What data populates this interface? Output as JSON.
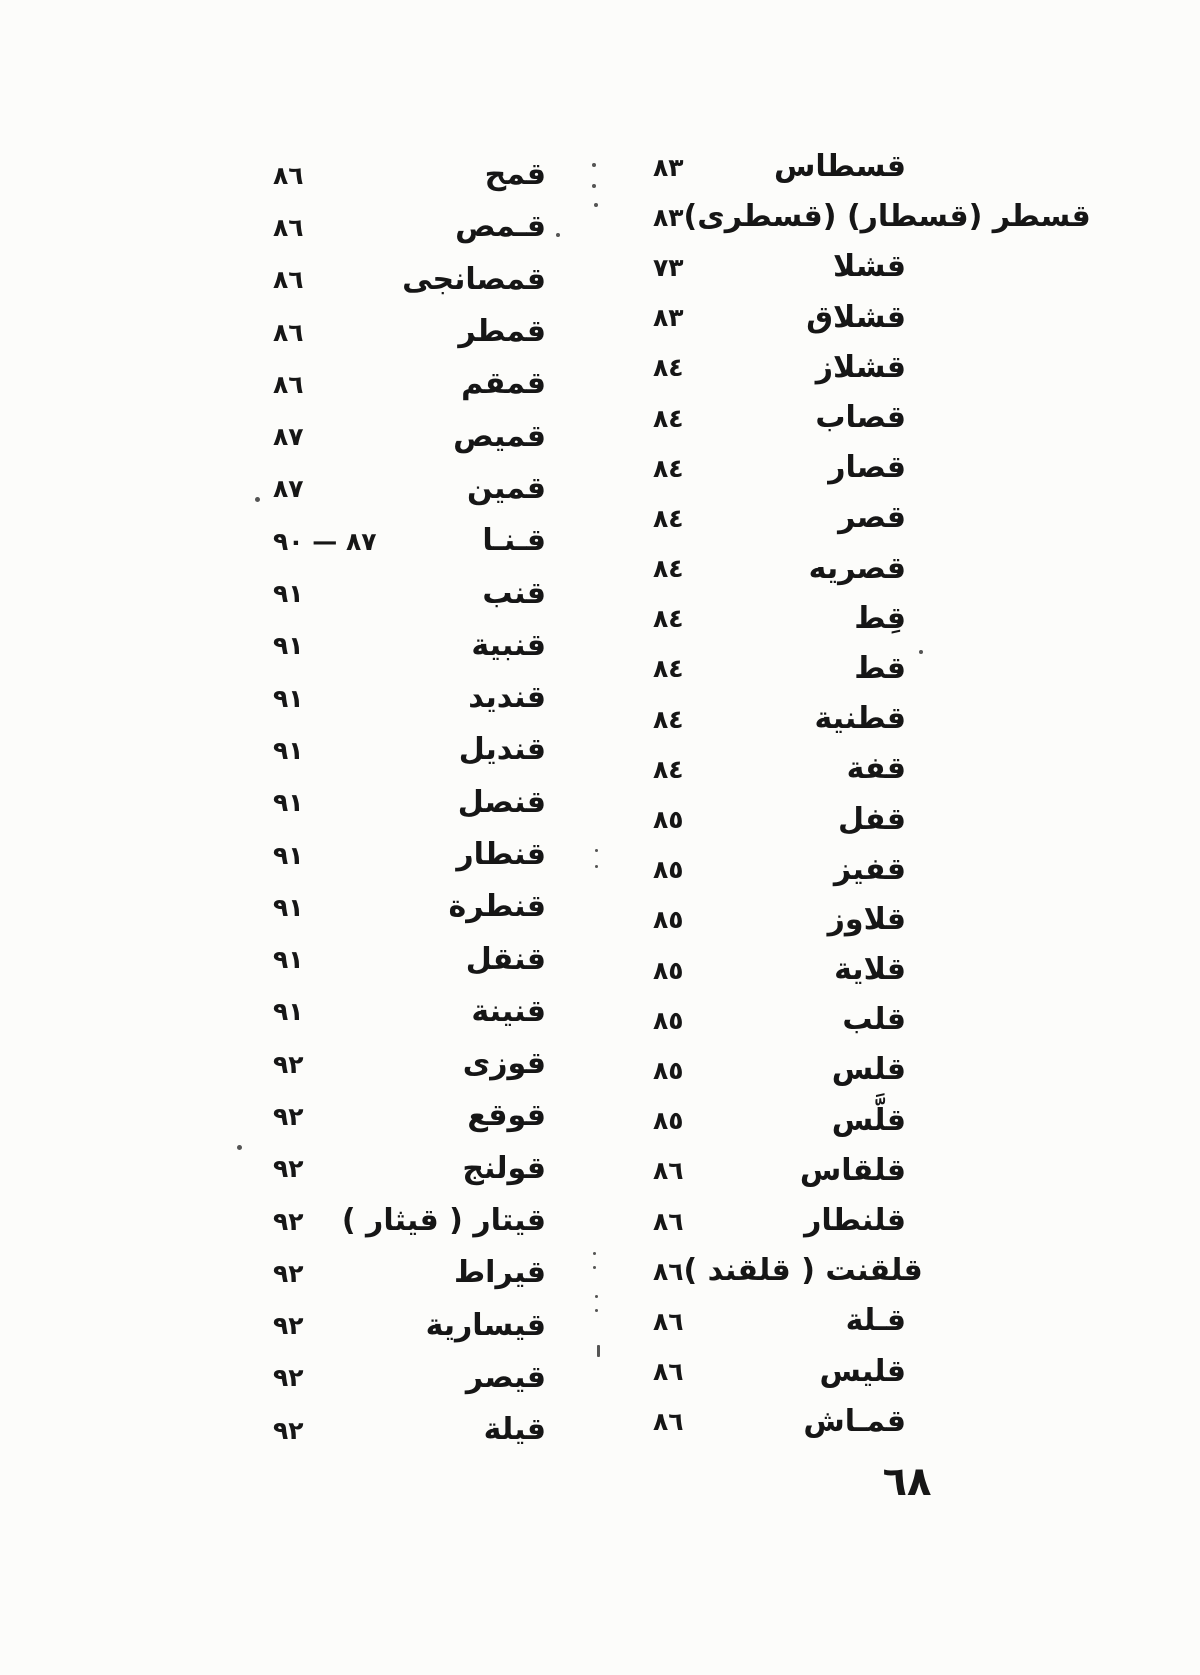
{
  "document": {
    "type": "scanned-book-index-page",
    "language": "Arabic",
    "page_number": "٦٨",
    "ink_color": "#161616",
    "background_color": "#fcfcfa",
    "columns": {
      "first_right": [
        {
          "term": "قسطاس",
          "page": "٨٣"
        },
        {
          "term": "قسطر (قسطار) (قسطرى)",
          "page": "٨٣"
        },
        {
          "term": "قشلا",
          "page": "٧٣"
        },
        {
          "term": "قشلاق",
          "page": "٨٣"
        },
        {
          "term": "قشلاز",
          "page": "٨٤"
        },
        {
          "term": "قصاب",
          "page": "٨٤"
        },
        {
          "term": "قصار",
          "page": "٨٤"
        },
        {
          "term": "قصر",
          "page": "٨٤"
        },
        {
          "term": "قصريه",
          "page": "٨٤"
        },
        {
          "term": "قِط",
          "page": "٨٤"
        },
        {
          "term": "قط",
          "page": "٨٤"
        },
        {
          "term": "قطنية",
          "page": "٨٤"
        },
        {
          "term": "قفة",
          "page": "٨٤"
        },
        {
          "term": "قفل",
          "page": "٨٥"
        },
        {
          "term": "قفيز",
          "page": "٨٥"
        },
        {
          "term": "قلاوز",
          "page": "٨٥"
        },
        {
          "term": "قلاية",
          "page": "٨٥"
        },
        {
          "term": "قلب",
          "page": "٨٥"
        },
        {
          "term": "قلس",
          "page": "٨٥"
        },
        {
          "term": "قلَّس",
          "page": "٨٥"
        },
        {
          "term": "قلقاس",
          "page": "٨٦"
        },
        {
          "term": "قلنطار",
          "page": "٨٦"
        },
        {
          "term": "قلقنت ( قلقند )",
          "page": "٨٦"
        },
        {
          "term": "قـلة",
          "page": "٨٦"
        },
        {
          "term": "قليس",
          "page": "٨٦"
        },
        {
          "term": "قمـاش",
          "page": "٨٦"
        }
      ],
      "second_left": [
        {
          "term": "قمح",
          "page": "٨٦"
        },
        {
          "term": "قـمص",
          "page": "٨٦"
        },
        {
          "term": "قمصانجى",
          "page": "٨٦"
        },
        {
          "term": "قمطر",
          "page": "٨٦"
        },
        {
          "term": "قمقم",
          "page": "٨٦"
        },
        {
          "term": "قميص",
          "page": "٨٧"
        },
        {
          "term": "قمين",
          "page": "٨٧"
        },
        {
          "term": "قـنـا",
          "page": "٨٧ — ٩٠"
        },
        {
          "term": "قنب",
          "page": "٩١"
        },
        {
          "term": "قنبية",
          "page": "٩١"
        },
        {
          "term": "قنديد",
          "page": "٩١"
        },
        {
          "term": "قنديل",
          "page": "٩١"
        },
        {
          "term": "قنصل",
          "page": "٩١"
        },
        {
          "term": "قنطار",
          "page": "٩١"
        },
        {
          "term": "قنطرة",
          "page": "٩١"
        },
        {
          "term": "قنقل",
          "page": "٩١"
        },
        {
          "term": "قنينة",
          "page": "٩١"
        },
        {
          "term": "قوزى",
          "page": "٩٢"
        },
        {
          "term": "قوقع",
          "page": "٩٢"
        },
        {
          "term": "قولنج",
          "page": "٩٢"
        },
        {
          "term": "قيتار ( قيثار )",
          "page": "٩٢"
        },
        {
          "term": "قيراط",
          "page": "٩٢"
        },
        {
          "term": "قيسارية",
          "page": "٩٢"
        },
        {
          "term": "قيصر",
          "page": "٩٢"
        },
        {
          "term": "قيلة",
          "page": "٩٢"
        }
      ]
    }
  }
}
